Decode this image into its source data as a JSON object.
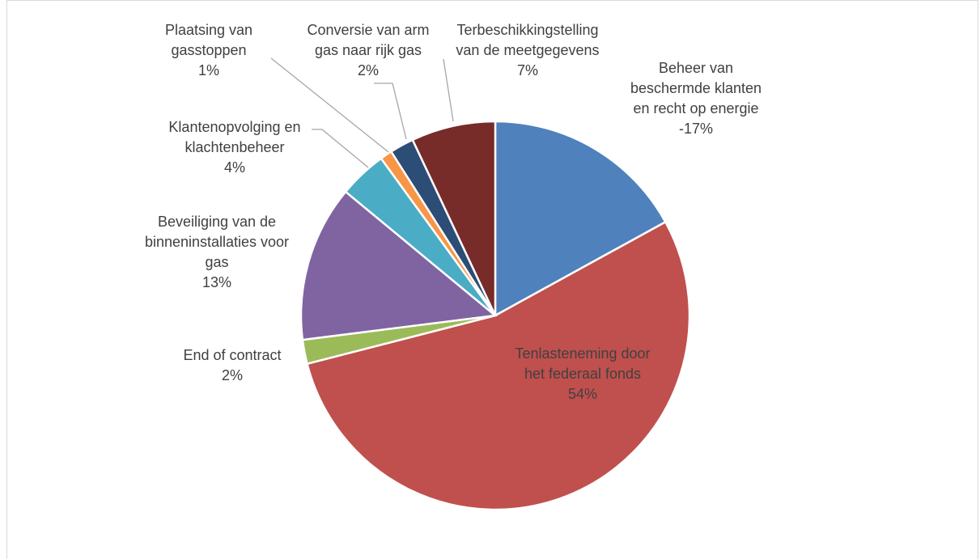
{
  "chart_data": {
    "type": "pie",
    "categories": [
      "Beheer van beschermde klanten en recht op energie",
      "Tenlasteneming door het federaal fonds",
      "End of contract",
      "Beveiliging van de binneninstallaties voor gas",
      "Klantenopvolging en klachtenbeheer",
      "Plaatsing van gasstoppen",
      "Conversie van arm gas naar rijk gas",
      "Terbeschikkingstelling van de meetgegevens"
    ],
    "values": [
      -17,
      54,
      2,
      13,
      4,
      1,
      2,
      7
    ],
    "value_labels": [
      "-17%",
      "54%",
      "2%",
      "13%",
      "4%",
      "1%",
      "2%",
      "7%"
    ],
    "colors": [
      "#4f81bd",
      "#c0504d",
      "#9bbb59",
      "#8064a2",
      "#4bacc6",
      "#f79646",
      "#2c4d75",
      "#772c2a"
    ]
  }
}
